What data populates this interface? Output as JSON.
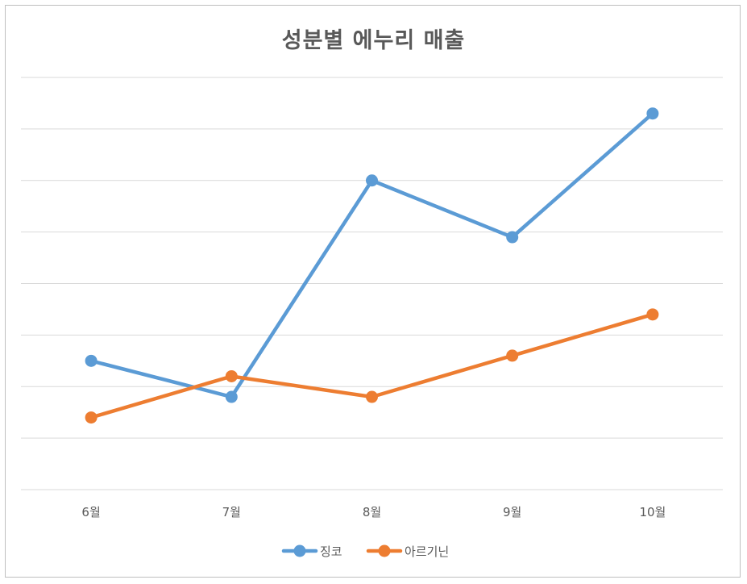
{
  "chart_data": {
    "type": "line",
    "title": "성분별 에누리 매출",
    "xlabel": "",
    "ylabel": "",
    "categories": [
      "6월",
      "7월",
      "8월",
      "9월",
      "10월"
    ],
    "ylim": [
      0,
      8
    ],
    "grid": true,
    "y_tick_labels_visible": false,
    "legend_position": "bottom",
    "series": [
      {
        "name": "징코",
        "color": "#5b9bd5",
        "values": [
          2.5,
          1.8,
          6.0,
          4.9,
          7.3
        ]
      },
      {
        "name": "아르기닌",
        "color": "#ed7d31",
        "values": [
          1.4,
          2.2,
          1.8,
          2.6,
          3.4
        ]
      }
    ]
  }
}
